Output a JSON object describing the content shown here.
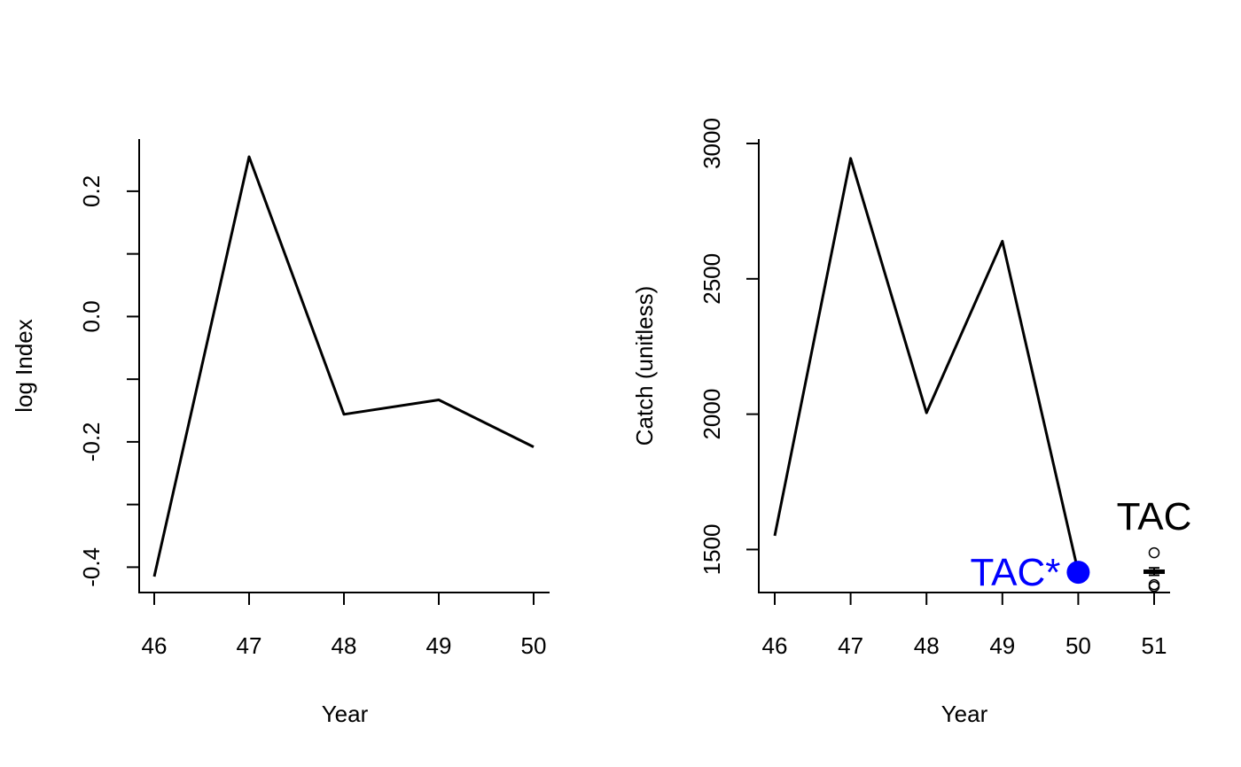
{
  "chart_data": [
    {
      "type": "line",
      "title": "",
      "xlabel": "Year",
      "ylabel": "log Index",
      "x": [
        46,
        47,
        48,
        49,
        50
      ],
      "series": [
        {
          "values": [
            -0.415,
            0.255,
            -0.156,
            -0.133,
            -0.208
          ]
        }
      ],
      "xlim": [
        46,
        50
      ],
      "xticks": [
        46,
        47,
        48,
        49,
        50
      ],
      "xtick_labels": [
        "46",
        "47",
        "48",
        "49",
        "50"
      ],
      "ylim": [
        -0.415,
        0.255
      ],
      "yticks": [
        -0.4,
        -0.3,
        -0.2,
        -0.1,
        0.0,
        0.1,
        0.2
      ],
      "ytick_labels": [
        "-0.4",
        "",
        "-0.2",
        "",
        "0.0",
        "",
        "0.2"
      ],
      "grid": false
    },
    {
      "type": "line",
      "title": "",
      "xlabel": "Year",
      "ylabel": "Catch (unitless)",
      "x": [
        46,
        47,
        48,
        49,
        50
      ],
      "series": [
        {
          "values": [
            1551,
            2945,
            2005,
            2639,
            1416
          ]
        }
      ],
      "xlim": [
        46,
        51
      ],
      "xticks": [
        46,
        47,
        48,
        49,
        50,
        51
      ],
      "xtick_labels": [
        "46",
        "47",
        "48",
        "49",
        "50",
        "51"
      ],
      "ylim": [
        1400,
        3000
      ],
      "yticks": [
        1500,
        2000,
        2500,
        3000
      ],
      "ytick_labels": [
        "1500",
        "2000",
        "2500",
        "3000"
      ],
      "grid": false,
      "point": {
        "label": "TAC*",
        "x": 50,
        "y": 1416,
        "color": "#0000ff"
      },
      "boxplot": {
        "label": "TAC",
        "x": 51,
        "median": 1418,
        "q1": 1413,
        "q3": 1423,
        "whisker_low": 1405,
        "whisker_high": 1432,
        "outliers": [
          1363,
          1370,
          1488
        ]
      }
    }
  ]
}
